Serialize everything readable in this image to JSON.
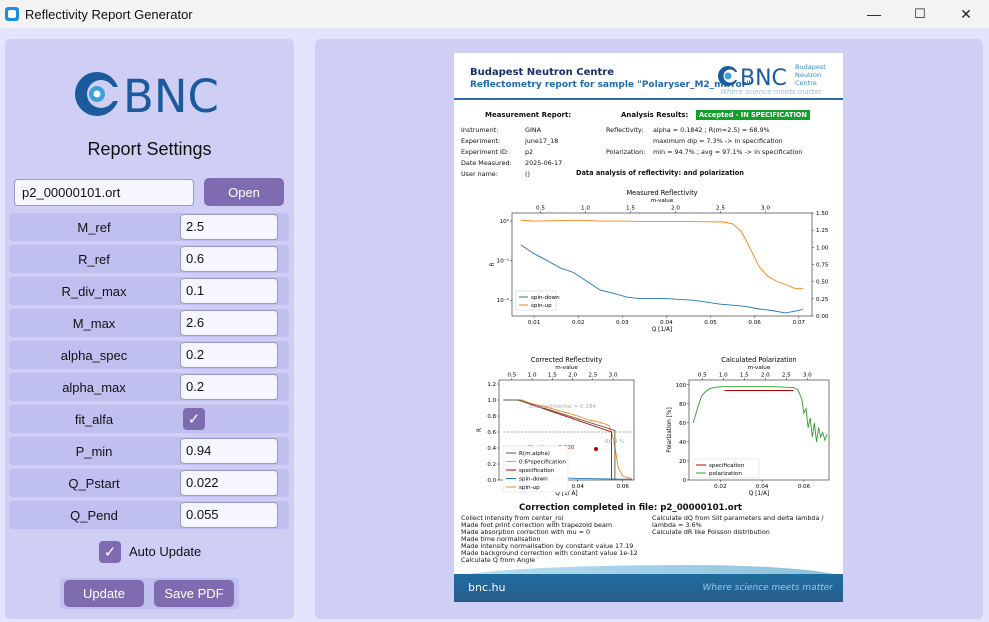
{
  "window": {
    "title": "Reflectivity Report Generator",
    "min": "—",
    "max": "☐",
    "close": "✕"
  },
  "left": {
    "logo_text": "BNC",
    "settings_title": "Report Settings",
    "file_value": "p2_00000101.ort",
    "open_label": "Open",
    "fields": [
      {
        "label": "M_ref",
        "value": "2.5"
      },
      {
        "label": "R_ref",
        "value": "0.6"
      },
      {
        "label": "R_div_max",
        "value": "0.1"
      },
      {
        "label": "M_max",
        "value": "2.6"
      },
      {
        "label": "alpha_spec",
        "value": "0.2"
      },
      {
        "label": "alpha_max",
        "value": "0.2"
      }
    ],
    "fit_alfa_label": "fit_alfa",
    "fit_alfa_checked": true,
    "fields2": [
      {
        "label": "P_min",
        "value": "0.94"
      },
      {
        "label": "Q_Pstart",
        "value": "0.022"
      },
      {
        "label": "Q_Pend",
        "value": "0.055"
      }
    ],
    "auto_update_label": "Auto Update",
    "auto_update_checked": true,
    "update_label": "Update",
    "save_label": "Save PDF",
    "check_mark": "✓"
  },
  "report": {
    "org": "Budapest Neutron Centre",
    "subtitle": "Reflectometry report for sample \"Polaryser_M2_mirror\"",
    "logo_text": "BNC",
    "logo_small": [
      "Budapest",
      "Neutron",
      "Centre"
    ],
    "tagline": "Where science meets matter",
    "measurement_header": "Measurement Report:",
    "analysis_header": "Analysis Results:",
    "status": "Accepted - IN SPECIFICATION",
    "meta": [
      {
        "k": "Instrument:",
        "v": "GINA"
      },
      {
        "k": "Experiment:",
        "v": "june17_18"
      },
      {
        "k": "Experiment ID:",
        "v": "p2"
      },
      {
        "k": "Date Measured:",
        "v": "2025-06-17"
      },
      {
        "k": "User name:",
        "v": "()"
      }
    ],
    "refl_label": "Reflectivity:",
    "refl_line1": "alpha = 0.1842 ; R(m=2.5) = 68.9%",
    "refl_line2": "maximum dip = 7.3% -> in specification",
    "pol_label": "Polarization:",
    "pol_line": "min = 94.7% ; avg = 97.1% -> in specification",
    "data_analysis": "Data analysis of reflectivity: and polarization",
    "correction_title": "Correction completed in file: p2_00000101.ort",
    "corr_left": [
      "Collect intensity from center_roi",
      "Made foot print correction with trapezoid beam",
      "Made absorption correction with mu = 0",
      "Made time normalisation",
      "Made intensity normalisation by constant value 17.19",
      "Made background correction with constant value 1e-12",
      "Calculate Q from Angle"
    ],
    "corr_right": [
      "Calculate dQ from Slit parameters and delta lambda /",
      "lambda = 3.6%",
      "Calculate dR like Poisson distribution"
    ],
    "footer_left": "bnc.hu",
    "footer_right": "Where science meets matter"
  },
  "chart_data": [
    {
      "type": "line",
      "title": "Measured Reflectivity",
      "top_axis_label": "m-value",
      "top_ticks": [
        "0.5",
        "1.0",
        "1.5",
        "2.0",
        "2.5",
        "3.0"
      ],
      "xlabel": "Q [1/A]",
      "ylabel": "R",
      "xlim": [
        0.005,
        0.073
      ],
      "x_ticks": [
        "0.01",
        "0.02",
        "0.03",
        "0.04",
        "0.05",
        "0.06",
        "0.07"
      ],
      "y_scale": "log",
      "y_ticks": [
        "10⁰",
        "10⁻¹",
        "10⁻²"
      ],
      "right_ticks": [
        "1.50",
        "1.25",
        "1.00",
        "0.75",
        "0.50",
        "0.25",
        "0.00"
      ],
      "series": [
        {
          "name": "spin-down",
          "color": "#1f77b4",
          "x": [
            0.007,
            0.01,
            0.013,
            0.016,
            0.019,
            0.022,
            0.025,
            0.028,
            0.031,
            0.034,
            0.037,
            0.04,
            0.043,
            0.046,
            0.049,
            0.052,
            0.055,
            0.058,
            0.061,
            0.064,
            0.067,
            0.07,
            0.071
          ],
          "y": [
            0.25,
            0.15,
            0.1,
            0.065,
            0.05,
            0.03,
            0.018,
            0.015,
            0.012,
            0.011,
            0.011,
            0.011,
            0.0105,
            0.01,
            0.009,
            0.008,
            0.0075,
            0.007,
            0.006,
            0.0055,
            0.0048,
            0.0055,
            0.006
          ]
        },
        {
          "name": "spin-up",
          "color": "#ff7f0e",
          "x": [
            0.007,
            0.01,
            0.015,
            0.02,
            0.025,
            0.03,
            0.035,
            0.04,
            0.045,
            0.05,
            0.053,
            0.055,
            0.057,
            0.059,
            0.061,
            0.063,
            0.065,
            0.067,
            0.069,
            0.071
          ],
          "y": [
            1.05,
            1.0,
            1.02,
            1.05,
            1.0,
            1.0,
            0.98,
            0.98,
            0.97,
            0.96,
            0.95,
            0.85,
            0.55,
            0.2,
            0.07,
            0.04,
            0.03,
            0.025,
            0.02,
            0.02
          ]
        }
      ]
    },
    {
      "type": "line",
      "title": "Corrected Reflectivity",
      "top_axis_label": "m-value",
      "top_ticks": [
        "0.5",
        "1.0",
        "1.5",
        "2.0",
        "2.5",
        "3.0"
      ],
      "xlabel": "Q [1/ A]",
      "ylabel": "R",
      "xlim": [
        0.005,
        0.065
      ],
      "ylim": [
        0,
        1.25
      ],
      "x_ticks": [
        "0.02",
        "0.04",
        "0.06"
      ],
      "y_ticks": [
        "0.0",
        "0.2",
        "0.4",
        "0.6",
        "0.8",
        "1.0",
        "1.2"
      ],
      "annotations": [
        "α-experimental = 0.184",
        "α-specification = 0.200",
        "68.9 %"
      ],
      "legend": [
        "R(m,alpha)",
        "0.6*specification",
        "specification",
        "spin-down",
        "spin-up"
      ],
      "series": [
        {
          "name": "spin-up",
          "color": "#ff7f0e",
          "x": [
            0.007,
            0.01,
            0.015,
            0.02,
            0.025,
            0.03,
            0.035,
            0.04,
            0.045,
            0.05,
            0.052,
            0.054,
            0.056,
            0.058,
            0.06,
            0.062,
            0.064
          ],
          "y": [
            1.0,
            1.0,
            1.0,
            0.95,
            0.92,
            0.88,
            0.84,
            0.8,
            0.75,
            0.72,
            0.7,
            0.68,
            0.5,
            0.15,
            0.05,
            0.03,
            0.02
          ]
        },
        {
          "name": "spin-down",
          "color": "#1f77b4",
          "x": [
            0.007,
            0.012,
            0.02,
            0.03,
            0.04,
            0.05,
            0.06,
            0.064
          ],
          "y": [
            0.2,
            0.1,
            0.05,
            0.03,
            0.02,
            0.015,
            0.01,
            0.01
          ]
        },
        {
          "name": "specification",
          "color": "#c00000",
          "x": [
            0.007,
            0.0135,
            0.055,
            0.055
          ],
          "y": [
            1.0,
            1.0,
            0.6,
            0.0
          ]
        },
        {
          "name": "R(m,alpha)",
          "color": "#555555",
          "x": [
            0.007,
            0.0135,
            0.0565,
            0.0565
          ],
          "y": [
            1.0,
            1.0,
            0.62,
            0.0
          ]
        },
        {
          "name": "0.6*specification",
          "color": "#aaaaaa",
          "x": [
            0.007,
            0.065
          ],
          "y": [
            0.6,
            0.6
          ]
        }
      ]
    },
    {
      "type": "line",
      "title": "Calculated Polarization",
      "top_axis_label": "m-value",
      "top_ticks": [
        "0.5",
        "1.0",
        "1.5",
        "2.0",
        "2.5",
        "3.0"
      ],
      "xlabel": "Q [1/A]",
      "ylabel": "Polarization [%]",
      "xlim": [
        0.005,
        0.072
      ],
      "ylim": [
        0,
        105
      ],
      "x_ticks": [
        "0.02",
        "0.04",
        "0.06"
      ],
      "y_ticks": [
        "0",
        "20",
        "40",
        "60",
        "80",
        "100"
      ],
      "series": [
        {
          "name": "specification",
          "color": "#c00000",
          "x": [
            0.022,
            0.055
          ],
          "y": [
            94,
            94
          ]
        },
        {
          "name": "polarization",
          "color": "#2ca02c",
          "x": [
            0.007,
            0.009,
            0.011,
            0.013,
            0.015,
            0.017,
            0.02,
            0.025,
            0.03,
            0.035,
            0.04,
            0.045,
            0.05,
            0.055,
            0.057,
            0.059,
            0.06,
            0.061,
            0.062,
            0.063,
            0.064,
            0.065,
            0.066,
            0.067,
            0.068,
            0.069,
            0.07,
            0.071
          ],
          "y": [
            60,
            75,
            88,
            93,
            96,
            97,
            98,
            98,
            98,
            98,
            98,
            98,
            97.5,
            97,
            95,
            85,
            70,
            75,
            55,
            65,
            45,
            60,
            40,
            55,
            45,
            50,
            42,
            48
          ]
        }
      ]
    }
  ]
}
